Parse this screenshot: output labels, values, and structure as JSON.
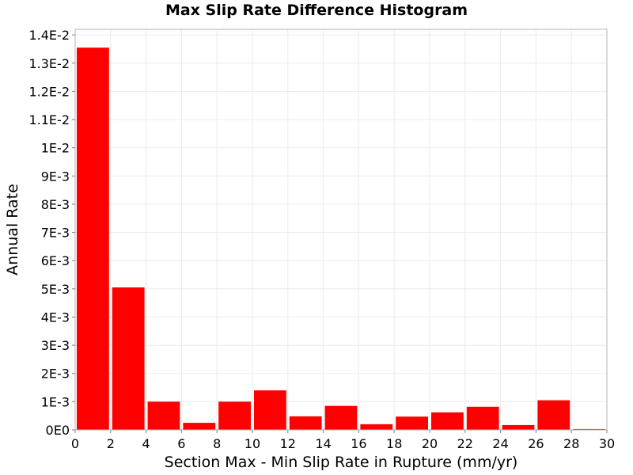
{
  "chart_data": {
    "type": "bar",
    "title": "Max Slip Rate Difference Histogram",
    "xlabel": "Section Max - Min Slip Rate in Rupture (mm/yr)",
    "ylabel": "Annual Rate",
    "xlim": [
      0,
      30
    ],
    "ylim": [
      0,
      0.0142
    ],
    "x_ticks": [
      0,
      2,
      4,
      6,
      8,
      10,
      12,
      14,
      16,
      18,
      20,
      22,
      24,
      26,
      28,
      30
    ],
    "x_tick_labels": [
      "0",
      "2",
      "4",
      "6",
      "8",
      "10",
      "12",
      "14",
      "16",
      "18",
      "20",
      "22",
      "24",
      "26",
      "28",
      "30"
    ],
    "y_ticks": [
      0,
      0.001,
      0.002,
      0.003,
      0.004,
      0.005,
      0.006,
      0.007,
      0.008,
      0.009,
      0.01,
      0.011,
      0.012,
      0.013,
      0.014
    ],
    "y_tick_labels": [
      "0E0",
      "1E-3",
      "2E-3",
      "3E-3",
      "4E-3",
      "5E-3",
      "6E-3",
      "7E-3",
      "8E-3",
      "9E-3",
      "1E-2",
      "1.1E-2",
      "1.2E-2",
      "1.3E-2",
      "1.4E-2"
    ],
    "bin_width": 2,
    "bins": [
      {
        "x": 1,
        "value": 0.01355
      },
      {
        "x": 3,
        "value": 0.00505
      },
      {
        "x": 5,
        "value": 0.001
      },
      {
        "x": 7,
        "value": 0.00025
      },
      {
        "x": 9,
        "value": 0.001
      },
      {
        "x": 11,
        "value": 0.0014
      },
      {
        "x": 13,
        "value": 0.00048
      },
      {
        "x": 15,
        "value": 0.00085
      },
      {
        "x": 17,
        "value": 0.0002
      },
      {
        "x": 19,
        "value": 0.00047
      },
      {
        "x": 21,
        "value": 0.00062
      },
      {
        "x": 23,
        "value": 0.00082
      },
      {
        "x": 25,
        "value": 0.00017
      },
      {
        "x": 27,
        "value": 0.00105
      },
      {
        "x": 29,
        "value": 3e-05
      }
    ],
    "bar_color": "#ff0000",
    "grid": true,
    "legend": false
  }
}
